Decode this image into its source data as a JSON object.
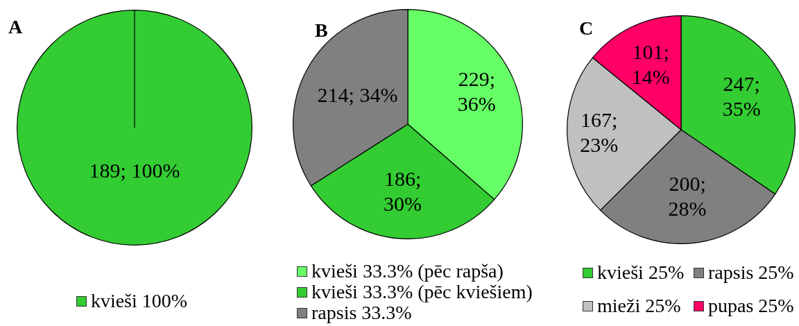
{
  "chart_data": [
    {
      "type": "pie",
      "title": "A",
      "categories": [
        "kvieši 100%"
      ],
      "values": [
        189
      ],
      "colors": [
        "#33cc33"
      ],
      "value_labels": [
        "189; 100%"
      ],
      "legend": "bottom"
    },
    {
      "type": "pie",
      "title": "B",
      "categories": [
        "kvieši 33.3% (pēc rapša)",
        "kvieši 33.3% (pēc kviešiem)",
        "rapsis 33.3%"
      ],
      "values": [
        229,
        186,
        214
      ],
      "colors": [
        "#66ff66",
        "#33cc33",
        "#808080"
      ],
      "value_labels": [
        "229; 36%",
        "186; 30%",
        "214; 34%"
      ],
      "legend": "bottom"
    },
    {
      "type": "pie",
      "title": "C",
      "categories": [
        "kvieši 25%",
        "rapsis 25%",
        "mieži 25%",
        "pupas 25%"
      ],
      "values": [
        247,
        200,
        167,
        101
      ],
      "colors": [
        "#33cc33",
        "#808080",
        "#c0c0c0",
        "#ff0066"
      ],
      "value_labels": [
        "247; 35%",
        "200; 28%",
        "167; 23%",
        "101; 14%"
      ],
      "legend": "bottom"
    }
  ]
}
